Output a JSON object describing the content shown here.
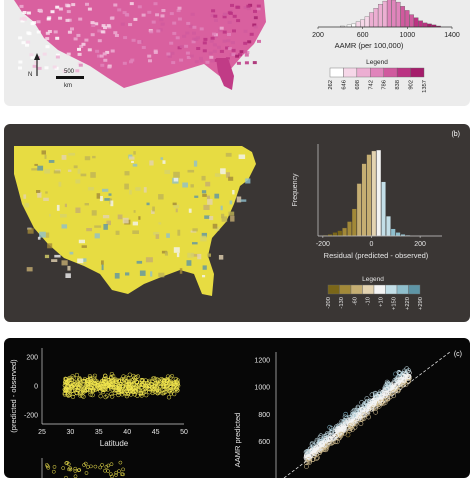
{
  "panel_a": {
    "map_labels": {
      "north": "N",
      "scale": "500",
      "unit": "km"
    },
    "histogram": {
      "xlabel": "AAMR (per 100,000)",
      "xticks": [
        200,
        600,
        1000,
        1400
      ],
      "colors": [
        "#ffffff",
        "#f6d7e8",
        "#ecaed2",
        "#e084bb",
        "#d05a9e",
        "#bb3383",
        "#a51d6b"
      ]
    },
    "legend": {
      "title": "Legend",
      "breaks": [
        "262",
        "646",
        "698",
        "742",
        "786",
        "838",
        "902",
        "1357"
      ],
      "colors": [
        "#ffffff",
        "#f6d7e8",
        "#ecaed2",
        "#e084bb",
        "#d05a9e",
        "#bb3383",
        "#a51d6b"
      ]
    }
  },
  "panel_b": {
    "tag": "(b)",
    "histogram": {
      "ylabel": "Frequency",
      "xlabel": "Residual (predicted - observed)",
      "xticks": [
        -200,
        0,
        200
      ],
      "colors": [
        "#7a6618",
        "#a28938",
        "#c5ae72",
        "#e3d3b1",
        "#f4f4f4",
        "#c3dfe8",
        "#8fbfcd",
        "#5e95a6"
      ]
    },
    "legend": {
      "title": "Legend",
      "breaks": [
        "-200",
        "-130",
        "-60",
        "-10",
        "+10",
        "+150",
        "+220",
        "+290"
      ],
      "colors": [
        "#7a6618",
        "#a28938",
        "#c5ae72",
        "#e3d3b1",
        "#f4f4f4",
        "#c3dfe8",
        "#8fbfcd",
        "#5e95a6"
      ]
    }
  },
  "panel_c": {
    "tag": "(c)",
    "scatter_latitude": {
      "ylabel": "(predicted - observed)",
      "xlabel": "Latitude",
      "yticks": [
        200,
        0,
        -200
      ],
      "xticks": [
        25,
        30,
        35,
        40,
        45,
        50
      ]
    },
    "scatter_aamr": {
      "ylabel": "AAMR predicted",
      "yticks": [
        1200,
        1000,
        800,
        600
      ]
    }
  },
  "chart_data": [
    {
      "type": "histogram",
      "panel": "a",
      "xlabel": "AAMR (per 100,000)",
      "xlim": [
        200,
        1400
      ],
      "bins": [
        400,
        460,
        500,
        540,
        580,
        620,
        660,
        700,
        740,
        780,
        820,
        860,
        900,
        940,
        980,
        1020,
        1060,
        1100,
        1140,
        1180,
        1220,
        1260
      ],
      "heights": [
        1,
        2,
        3,
        5,
        7,
        10,
        14,
        18,
        22,
        25,
        27,
        26,
        24,
        20,
        16,
        12,
        9,
        6,
        4,
        3,
        2,
        1
      ]
    },
    {
      "type": "bar",
      "panel": "a-legend",
      "title": "Legend",
      "categories": [
        "262",
        "646",
        "698",
        "742",
        "786",
        "838",
        "902",
        "1357"
      ]
    },
    {
      "type": "histogram",
      "panel": "b",
      "ylabel": "Frequency",
      "xlabel": "Residual (predicted - observed)",
      "xlim": [
        -220,
        290
      ],
      "bins": [
        -200,
        -180,
        -160,
        -140,
        -120,
        -100,
        -80,
        -60,
        -40,
        -20,
        0,
        20,
        40,
        60,
        80,
        100,
        120,
        140
      ],
      "heights": [
        1,
        2,
        4,
        6,
        9,
        16,
        30,
        58,
        80,
        90,
        94,
        95,
        60,
        22,
        8,
        4,
        2,
        1
      ]
    },
    {
      "type": "bar",
      "panel": "b-legend",
      "title": "Legend",
      "categories": [
        "-200",
        "-130",
        "-60",
        "-10",
        "+10",
        "+150",
        "+220",
        "+290"
      ]
    },
    {
      "type": "scatter",
      "panel": "c-left",
      "xlabel": "Latitude",
      "ylabel": "(predicted - observed)",
      "xlim": [
        25,
        50
      ],
      "ylim": [
        -260,
        260
      ]
    },
    {
      "type": "scatter",
      "panel": "c-right",
      "ylabel": "AAMR predicted",
      "xlim": [
        300,
        1400
      ],
      "ylim": [
        330,
        1260
      ]
    }
  ]
}
